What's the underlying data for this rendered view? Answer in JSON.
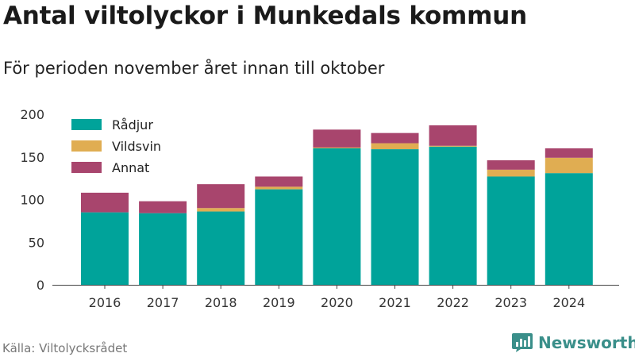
{
  "header": {
    "title": "Antal viltolyckor i Munkedals kommun",
    "subtitle": "För perioden november året innan till oktober"
  },
  "footer": {
    "source": "Källa: Viltolycksrådet",
    "brand": "Newsworthy",
    "brand_icon": "newsworthy-logo-icon"
  },
  "colors": {
    "radjur": "#00a39a",
    "vildsvin": "#e0ad52",
    "annat": "#a8456d"
  },
  "chart_data": {
    "type": "bar",
    "stacked": true,
    "categories": [
      "2016",
      "2017",
      "2018",
      "2019",
      "2020",
      "2021",
      "2022",
      "2023",
      "2024"
    ],
    "series": [
      {
        "name": "Rådjur",
        "color": "#00a39a",
        "values": [
          85,
          84,
          86,
          112,
          160,
          159,
          162,
          127,
          131
        ]
      },
      {
        "name": "Vildsvin",
        "color": "#e0ad52",
        "values": [
          0,
          0,
          4,
          3,
          1,
          7,
          1,
          8,
          18
        ]
      },
      {
        "name": "Annat",
        "color": "#a8456d",
        "values": [
          23,
          14,
          28,
          12,
          21,
          12,
          24,
          11,
          11
        ]
      }
    ],
    "ylim": [
      0,
      200
    ],
    "yticks": [
      0,
      50,
      100,
      150,
      200
    ],
    "xlabel": "",
    "ylabel": "",
    "grid": false,
    "legend": "top-left"
  }
}
